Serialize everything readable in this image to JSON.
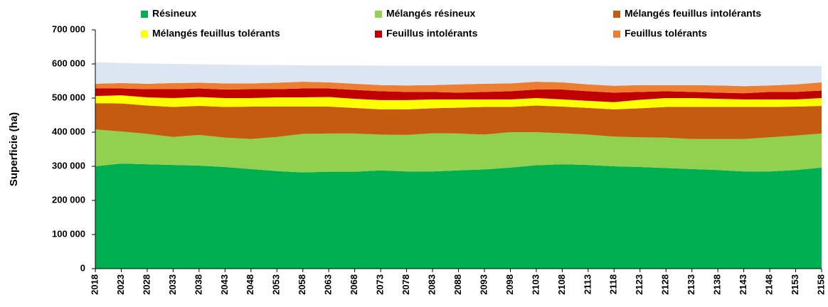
{
  "chart_data": {
    "type": "stacked-area",
    "y_label": "Superficie (ha)",
    "categories": [
      "2018",
      "2023",
      "2028",
      "2033",
      "2038",
      "2043",
      "2048",
      "2053",
      "2058",
      "2063",
      "2068",
      "2073",
      "2078",
      "2083",
      "2088",
      "2093",
      "2098",
      "2103",
      "2108",
      "2113",
      "2118",
      "2123",
      "2128",
      "2133",
      "2138",
      "2143",
      "2148",
      "2153",
      "2158"
    ],
    "ylim": [
      0,
      700000
    ],
    "yticks": [
      0,
      {
        "value": 100000,
        "label": "100 000"
      },
      {
        "value": 200000,
        "label": "200 000"
      },
      {
        "value": 300000,
        "label": "300 000"
      },
      {
        "value": 400000,
        "label": "400 000"
      },
      {
        "value": 500000,
        "label": "500 000"
      },
      {
        "value": 600000,
        "label": "600 000"
      },
      {
        "value": 700000,
        "label": "700 000"
      }
    ],
    "series": [
      {
        "name": "Résineux",
        "color": "#00b050",
        "values": [
          300000,
          308000,
          306000,
          304000,
          302000,
          298000,
          292000,
          286000,
          282000,
          284000,
          284000,
          288000,
          285000,
          285000,
          288000,
          291000,
          296000,
          303000,
          306000,
          304000,
          300000,
          298000,
          295000,
          292000,
          289000,
          285000,
          285000,
          289000,
          296000
        ]
      },
      {
        "name": "Mélangés résineux",
        "color": "#92d050",
        "values": [
          108000,
          94000,
          89000,
          82000,
          90000,
          86000,
          88000,
          100000,
          113000,
          112000,
          112000,
          105000,
          107000,
          112000,
          108000,
          102000,
          104000,
          97000,
          91000,
          89000,
          87000,
          87000,
          89000,
          88000,
          91000,
          95000,
          100000,
          101000,
          100000
        ]
      },
      {
        "name": "Mélangés feuillus intolérants",
        "color": "#c55a11",
        "values": [
          77000,
          82000,
          83000,
          88000,
          85000,
          90000,
          95000,
          89000,
          80000,
          79000,
          75000,
          74000,
          75000,
          73000,
          76000,
          81000,
          74000,
          78000,
          78000,
          78000,
          80000,
          85000,
          90000,
          94000,
          94000,
          94000,
          89000,
          85000,
          81000
        ]
      },
      {
        "name": "Mélangés feuillus tolérants",
        "color": "#ffff00",
        "values": [
          21000,
          24000,
          24000,
          26000,
          26000,
          26000,
          25000,
          27000,
          27000,
          28000,
          27000,
          27000,
          27000,
          26000,
          24000,
          22000,
          22000,
          22000,
          21000,
          21000,
          21000,
          25000,
          26000,
          26000,
          24000,
          22000,
          22000,
          21000,
          23000
        ]
      },
      {
        "name": "Feuillus intolérants",
        "color": "#c00000",
        "values": [
          22000,
          20000,
          24000,
          26000,
          25000,
          25000,
          26000,
          24000,
          26000,
          25000,
          26000,
          26000,
          24000,
          22000,
          20000,
          22000,
          24000,
          25000,
          29000,
          28000,
          28000,
          23000,
          20000,
          18000,
          18000,
          18000,
          22000,
          22000,
          22000
        ]
      },
      {
        "name": "Feuillus tolérants",
        "color": "#ed7d31",
        "values": [
          14000,
          16000,
          16000,
          18000,
          17000,
          18000,
          17000,
          19000,
          20000,
          18000,
          18000,
          18000,
          19000,
          20000,
          24000,
          24000,
          23000,
          23000,
          21000,
          20000,
          20000,
          20000,
          18000,
          20000,
          21000,
          21000,
          19000,
          22000,
          24000
        ]
      },
      {
        "color": "#dce6f2",
        "values": [
          63000,
          59000,
          59000,
          56000,
          54000,
          55000,
          54000,
          52000,
          48000,
          50000,
          54000,
          57000,
          58000,
          57000,
          55000,
          53000,
          52000,
          47000,
          49000,
          55000,
          58000,
          56000,
          56000,
          56000,
          57000,
          59000,
          57000,
          54000,
          48000
        ]
      }
    ]
  }
}
